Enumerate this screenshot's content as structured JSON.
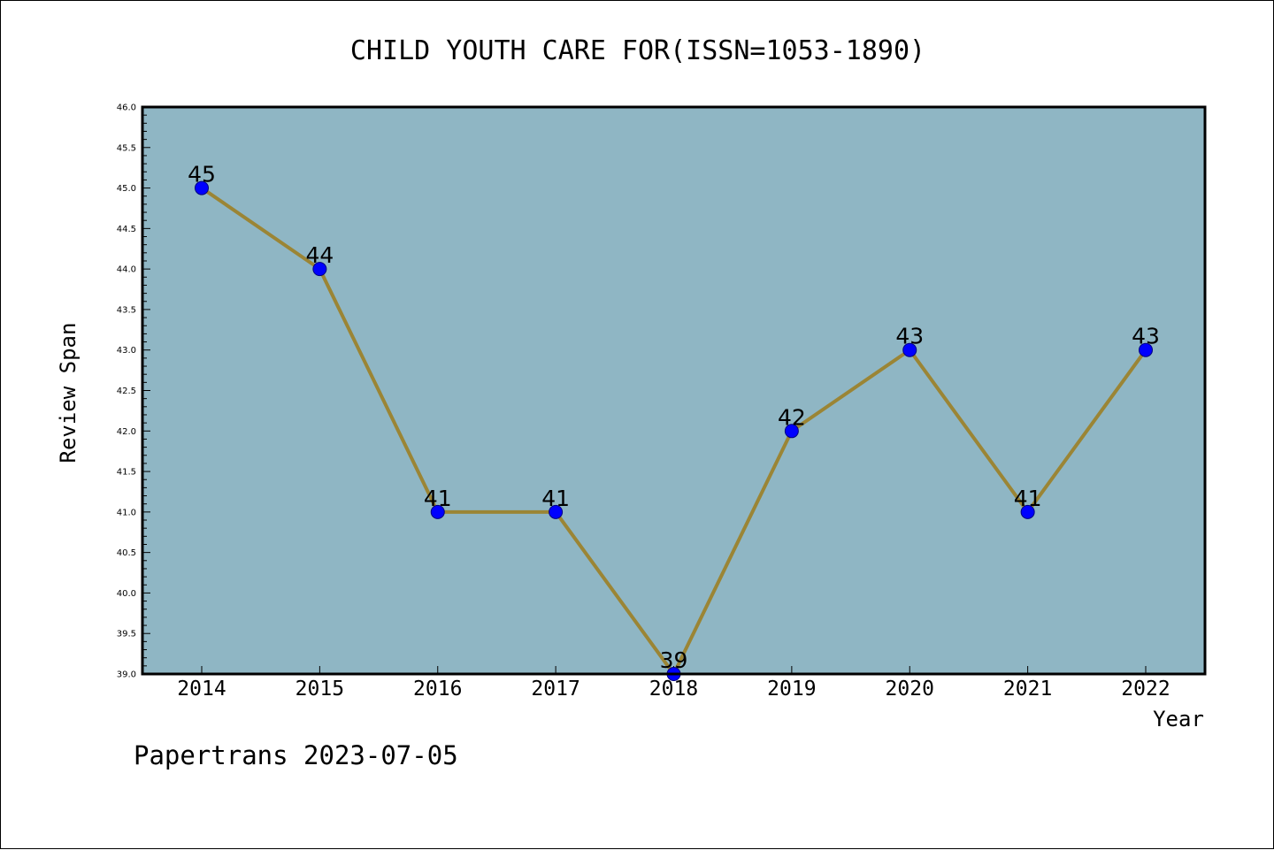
{
  "chart_data": {
    "type": "line",
    "title": "CHILD YOUTH CARE FOR(ISSN=1053-1890)",
    "xlabel": "Year",
    "ylabel": "Review Span",
    "categories": [
      "2014",
      "2015",
      "2016",
      "2017",
      "2018",
      "2019",
      "2020",
      "2021",
      "2022"
    ],
    "series": [
      {
        "values": [
          45,
          44,
          41,
          41,
          39,
          42,
          43,
          41,
          43
        ],
        "data_labels": [
          "45",
          "44",
          "41",
          "41",
          "39",
          "42",
          "43",
          "41",
          "43"
        ]
      }
    ],
    "ylim": [
      39.0,
      46.0
    ],
    "yticks": [
      "39.0",
      "39.5",
      "40.0",
      "40.5",
      "41.0",
      "41.5",
      "42.0",
      "42.5",
      "43.0",
      "43.5",
      "44.0",
      "44.5",
      "45.0",
      "45.5",
      "46.0"
    ],
    "grid": false,
    "colors": {
      "plot_background": "#8fb6c4",
      "line": "#9b8535",
      "marker": "#0000ff",
      "marker_edge": "#000080"
    }
  },
  "footer": {
    "note": "Papertrans 2023-07-05"
  }
}
